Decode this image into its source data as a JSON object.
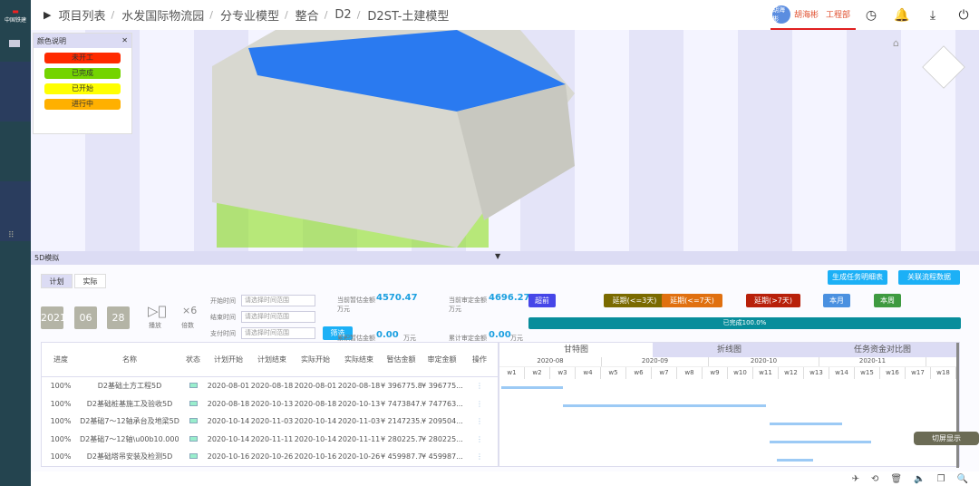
{
  "brand": "中国铁建",
  "breadcrumb": [
    "项目列表",
    "水发国际物流园",
    "分专业模型",
    "整合",
    "D2",
    "D2ST-土建模型"
  ],
  "user": {
    "avatar": "胡海彬",
    "name": "胡海彬",
    "dept": "工程部"
  },
  "legend": {
    "title": "颜色说明",
    "items": [
      {
        "label": "未开工",
        "color": "#ff2a00"
      },
      {
        "label": "已完成",
        "color": "#74d400"
      },
      {
        "label": "已开始",
        "color": "#ffff00"
      },
      {
        "label": "进行中",
        "color": "#ffb000"
      }
    ]
  },
  "panel_title": "5D模拟",
  "tabs": [
    "计划",
    "实际"
  ],
  "date": {
    "year": "2021",
    "month": "06",
    "day": "28"
  },
  "play_label": "播放",
  "speed": "×6",
  "speed_label": "倍数",
  "filters": [
    {
      "label": "开始时间",
      "placeholder": "请选择时间范围"
    },
    {
      "label": "结束时间",
      "placeholder": "请选择时间范围"
    },
    {
      "label": "支付时间",
      "placeholder": "请选择时间范围"
    }
  ],
  "filter_button": "筛选",
  "amounts": {
    "est_label": "当前暂估金额",
    "est_value": "4570.47",
    "unit": "万元",
    "audit_label": "当前审定金额",
    "audit_value": "4696.27",
    "cum_est_label": "累积暂估金额",
    "cum_est_value": "0.00",
    "cum_audit_label": "累计审定金额",
    "cum_audit_value": "0.00"
  },
  "action_buttons": [
    "生成任务明细表",
    "关联流程数据"
  ],
  "status_buttons": [
    {
      "label": "超前",
      "color": "#4646e8"
    },
    {
      "label": "延期(<=3天)",
      "color": "#7a6a00"
    },
    {
      "label": "延期(<=7天)",
      "color": "#e07010"
    },
    {
      "label": "延期(>7天)",
      "color": "#b8200a"
    },
    {
      "label": "本月",
      "color": "#4a90e0"
    },
    {
      "label": "本周",
      "color": "#3e9a40"
    }
  ],
  "progress": {
    "label": "已完成100.0%",
    "value": 100
  },
  "table": {
    "headers": [
      "进度",
      "名称",
      "状态",
      "计划开始",
      "计划结束",
      "实际开始",
      "实际结束",
      "暂估金额",
      "审定金额",
      "操作"
    ],
    "rows": [
      [
        "100%",
        "D2基础土方工程5D",
        "",
        "2020-08-01",
        "2020-08-18",
        "2020-08-01",
        "2020-08-18",
        "¥ 396775.84",
        "¥ 396775..."
      ],
      [
        "100%",
        "D2基础桩基施工及验收5D",
        "",
        "2020-08-18",
        "2020-10-13",
        "2020-08-18",
        "2020-10-13",
        "¥ 7473847...",
        "¥ 747763..."
      ],
      [
        "100%",
        "D2基础7～12轴承台及地梁5D",
        "",
        "2020-10-14",
        "2020-11-03",
        "2020-10-14",
        "2020-11-03",
        "¥ 2147235...",
        "¥ 209504..."
      ],
      [
        "100%",
        "D2基础7～12轴\\u00b10.000以...",
        "",
        "2020-10-14",
        "2020-11-11",
        "2020-10-14",
        "2020-11-11",
        "¥ 280225.77",
        "¥ 280225..."
      ],
      [
        "100%",
        "D2基础塔吊安装及检测5D",
        "",
        "2020-10-16",
        "2020-10-26",
        "2020-10-16",
        "2020-10-26",
        "¥ 459987.76",
        "¥ 459987..."
      ]
    ]
  },
  "gantt": {
    "tabs": [
      "甘特图",
      "折线图",
      "任务资金对比图"
    ],
    "months": [
      "2020-08",
      "2020-09",
      "2020-10",
      "2020-11"
    ],
    "weeks": [
      "w1",
      "w2",
      "w3",
      "w4",
      "w5",
      "w6",
      "w7",
      "w8",
      "w9",
      "w10",
      "w11",
      "w12",
      "w13",
      "w14",
      "w15",
      "w16",
      "w17",
      "w18"
    ]
  },
  "screen_button": "切屏显示"
}
